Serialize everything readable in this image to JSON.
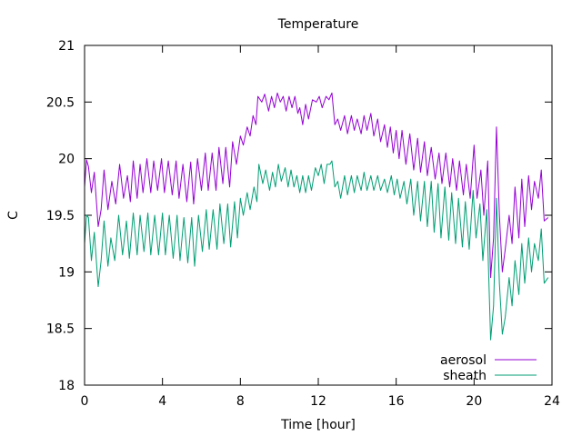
{
  "chart_data": {
    "type": "line",
    "title": "Temperature",
    "xlabel": "Time [hour]",
    "ylabel": "C",
    "xlim": [
      0,
      24
    ],
    "ylim": [
      18,
      21
    ],
    "x_ticks": [
      "0",
      "4",
      "8",
      "12",
      "16",
      "20",
      "24"
    ],
    "y_ticks": [
      "18",
      "18.5",
      "19",
      "19.5",
      "20",
      "20.5",
      "21"
    ],
    "grid": false,
    "legend_position": "bottom-right",
    "series": [
      {
        "name": "aerosol",
        "color": "#9400d3",
        "points": [
          [
            0.0,
            19.75
          ],
          [
            0.1,
            19.99
          ],
          [
            0.2,
            19.93
          ],
          [
            0.35,
            19.7
          ],
          [
            0.5,
            19.88
          ],
          [
            0.7,
            19.4
          ],
          [
            0.85,
            19.55
          ],
          [
            1.0,
            19.9
          ],
          [
            1.2,
            19.55
          ],
          [
            1.4,
            19.8
          ],
          [
            1.6,
            19.6
          ],
          [
            1.8,
            19.95
          ],
          [
            2.0,
            19.65
          ],
          [
            2.2,
            19.85
          ],
          [
            2.35,
            19.62
          ],
          [
            2.5,
            19.98
          ],
          [
            2.7,
            19.65
          ],
          [
            2.85,
            19.95
          ],
          [
            3.0,
            19.7
          ],
          [
            3.2,
            20.0
          ],
          [
            3.4,
            19.7
          ],
          [
            3.55,
            19.98
          ],
          [
            3.75,
            19.72
          ],
          [
            3.95,
            20.0
          ],
          [
            4.1,
            19.7
          ],
          [
            4.3,
            19.98
          ],
          [
            4.5,
            19.68
          ],
          [
            4.7,
            19.98
          ],
          [
            4.85,
            19.65
          ],
          [
            5.05,
            19.95
          ],
          [
            5.25,
            19.62
          ],
          [
            5.45,
            19.97
          ],
          [
            5.6,
            19.6
          ],
          [
            5.8,
            20.0
          ],
          [
            6.0,
            19.72
          ],
          [
            6.2,
            20.05
          ],
          [
            6.35,
            19.72
          ],
          [
            6.55,
            20.05
          ],
          [
            6.75,
            19.72
          ],
          [
            6.9,
            20.1
          ],
          [
            7.1,
            19.78
          ],
          [
            7.25,
            20.1
          ],
          [
            7.45,
            19.75
          ],
          [
            7.6,
            20.15
          ],
          [
            7.8,
            19.95
          ],
          [
            8.0,
            20.2
          ],
          [
            8.15,
            20.12
          ],
          [
            8.35,
            20.28
          ],
          [
            8.5,
            20.2
          ],
          [
            8.65,
            20.38
          ],
          [
            8.8,
            20.3
          ],
          [
            8.9,
            20.55
          ],
          [
            9.1,
            20.5
          ],
          [
            9.25,
            20.57
          ],
          [
            9.45,
            20.42
          ],
          [
            9.6,
            20.55
          ],
          [
            9.75,
            20.45
          ],
          [
            9.9,
            20.58
          ],
          [
            10.05,
            20.5
          ],
          [
            10.2,
            20.55
          ],
          [
            10.35,
            20.42
          ],
          [
            10.5,
            20.55
          ],
          [
            10.65,
            20.45
          ],
          [
            10.8,
            20.55
          ],
          [
            10.95,
            20.4
          ],
          [
            11.05,
            20.45
          ],
          [
            11.2,
            20.3
          ],
          [
            11.35,
            20.48
          ],
          [
            11.5,
            20.35
          ],
          [
            11.7,
            20.52
          ],
          [
            11.9,
            20.5
          ],
          [
            12.05,
            20.55
          ],
          [
            12.2,
            20.45
          ],
          [
            12.4,
            20.55
          ],
          [
            12.55,
            20.52
          ],
          [
            12.7,
            20.58
          ],
          [
            12.85,
            20.3
          ],
          [
            13.0,
            20.35
          ],
          [
            13.15,
            20.25
          ],
          [
            13.35,
            20.38
          ],
          [
            13.5,
            20.22
          ],
          [
            13.7,
            20.38
          ],
          [
            13.85,
            20.25
          ],
          [
            14.0,
            20.35
          ],
          [
            14.2,
            20.22
          ],
          [
            14.35,
            20.38
          ],
          [
            14.5,
            20.25
          ],
          [
            14.7,
            20.4
          ],
          [
            14.85,
            20.2
          ],
          [
            15.05,
            20.35
          ],
          [
            15.2,
            20.15
          ],
          [
            15.4,
            20.3
          ],
          [
            15.55,
            20.1
          ],
          [
            15.7,
            20.28
          ],
          [
            15.85,
            20.05
          ],
          [
            16.0,
            20.25
          ],
          [
            16.15,
            20.0
          ],
          [
            16.3,
            20.25
          ],
          [
            16.5,
            19.95
          ],
          [
            16.7,
            20.22
          ],
          [
            16.9,
            19.9
          ],
          [
            17.1,
            20.18
          ],
          [
            17.25,
            19.88
          ],
          [
            17.45,
            20.15
          ],
          [
            17.6,
            19.85
          ],
          [
            17.8,
            20.1
          ],
          [
            18.0,
            19.82
          ],
          [
            18.2,
            20.05
          ],
          [
            18.35,
            19.78
          ],
          [
            18.55,
            20.05
          ],
          [
            18.75,
            19.75
          ],
          [
            18.9,
            20.0
          ],
          [
            19.1,
            19.72
          ],
          [
            19.25,
            19.98
          ],
          [
            19.45,
            19.68
          ],
          [
            19.6,
            19.95
          ],
          [
            19.8,
            19.65
          ],
          [
            20.0,
            20.12
          ],
          [
            20.15,
            19.65
          ],
          [
            20.35,
            19.9
          ],
          [
            20.5,
            19.5
          ],
          [
            20.7,
            19.98
          ],
          [
            20.85,
            18.95
          ],
          [
            21.0,
            19.3
          ],
          [
            21.15,
            20.28
          ],
          [
            21.3,
            19.5
          ],
          [
            21.45,
            19.0
          ],
          [
            21.6,
            19.2
          ],
          [
            21.8,
            19.5
          ],
          [
            21.95,
            19.25
          ],
          [
            22.1,
            19.75
          ],
          [
            22.3,
            19.3
          ],
          [
            22.45,
            19.82
          ],
          [
            22.6,
            19.4
          ],
          [
            22.8,
            19.85
          ],
          [
            22.95,
            19.55
          ],
          [
            23.1,
            19.8
          ],
          [
            23.3,
            19.65
          ],
          [
            23.45,
            19.9
          ],
          [
            23.6,
            19.45
          ],
          [
            23.8,
            19.48
          ]
        ]
      },
      {
        "name": "sheath",
        "color": "#009e73",
        "points": [
          [
            0.0,
            19.25
          ],
          [
            0.1,
            19.5
          ],
          [
            0.2,
            19.48
          ],
          [
            0.35,
            19.1
          ],
          [
            0.5,
            19.35
          ],
          [
            0.7,
            18.87
          ],
          [
            0.85,
            19.1
          ],
          [
            1.0,
            19.45
          ],
          [
            1.2,
            19.05
          ],
          [
            1.35,
            19.3
          ],
          [
            1.55,
            19.1
          ],
          [
            1.75,
            19.5
          ],
          [
            1.95,
            19.15
          ],
          [
            2.15,
            19.45
          ],
          [
            2.3,
            19.12
          ],
          [
            2.5,
            19.52
          ],
          [
            2.7,
            19.15
          ],
          [
            2.85,
            19.5
          ],
          [
            3.05,
            19.18
          ],
          [
            3.25,
            19.52
          ],
          [
            3.4,
            19.15
          ],
          [
            3.6,
            19.5
          ],
          [
            3.8,
            19.15
          ],
          [
            4.0,
            19.52
          ],
          [
            4.15,
            19.15
          ],
          [
            4.35,
            19.5
          ],
          [
            4.55,
            19.12
          ],
          [
            4.75,
            19.5
          ],
          [
            4.9,
            19.1
          ],
          [
            5.1,
            19.48
          ],
          [
            5.3,
            19.08
          ],
          [
            5.5,
            19.48
          ],
          [
            5.65,
            19.05
          ],
          [
            5.85,
            19.5
          ],
          [
            6.05,
            19.18
          ],
          [
            6.25,
            19.55
          ],
          [
            6.4,
            19.2
          ],
          [
            6.6,
            19.55
          ],
          [
            6.8,
            19.2
          ],
          [
            6.95,
            19.6
          ],
          [
            7.15,
            19.25
          ],
          [
            7.35,
            19.6
          ],
          [
            7.5,
            19.22
          ],
          [
            7.7,
            19.62
          ],
          [
            7.85,
            19.3
          ],
          [
            8.0,
            19.65
          ],
          [
            8.15,
            19.5
          ],
          [
            8.35,
            19.7
          ],
          [
            8.5,
            19.55
          ],
          [
            8.7,
            19.75
          ],
          [
            8.85,
            19.62
          ],
          [
            8.95,
            19.95
          ],
          [
            9.15,
            19.78
          ],
          [
            9.3,
            19.9
          ],
          [
            9.5,
            19.72
          ],
          [
            9.65,
            19.88
          ],
          [
            9.8,
            19.75
          ],
          [
            9.95,
            19.95
          ],
          [
            10.1,
            19.8
          ],
          [
            10.3,
            19.92
          ],
          [
            10.45,
            19.75
          ],
          [
            10.6,
            19.9
          ],
          [
            10.75,
            19.75
          ],
          [
            10.9,
            19.85
          ],
          [
            11.05,
            19.7
          ],
          [
            11.2,
            19.85
          ],
          [
            11.35,
            19.7
          ],
          [
            11.5,
            19.85
          ],
          [
            11.65,
            19.72
          ],
          [
            11.85,
            19.92
          ],
          [
            12.0,
            19.85
          ],
          [
            12.15,
            19.95
          ],
          [
            12.3,
            19.78
          ],
          [
            12.45,
            19.95
          ],
          [
            12.6,
            19.95
          ],
          [
            12.7,
            19.98
          ],
          [
            12.85,
            19.75
          ],
          [
            13.0,
            19.8
          ],
          [
            13.15,
            19.65
          ],
          [
            13.35,
            19.85
          ],
          [
            13.5,
            19.68
          ],
          [
            13.7,
            19.85
          ],
          [
            13.85,
            19.7
          ],
          [
            14.0,
            19.85
          ],
          [
            14.2,
            19.72
          ],
          [
            14.35,
            19.88
          ],
          [
            14.5,
            19.72
          ],
          [
            14.7,
            19.85
          ],
          [
            14.85,
            19.72
          ],
          [
            15.05,
            19.85
          ],
          [
            15.2,
            19.72
          ],
          [
            15.4,
            19.82
          ],
          [
            15.55,
            19.7
          ],
          [
            15.75,
            19.85
          ],
          [
            15.9,
            19.68
          ],
          [
            16.05,
            19.82
          ],
          [
            16.2,
            19.65
          ],
          [
            16.4,
            19.8
          ],
          [
            16.55,
            19.6
          ],
          [
            16.75,
            19.82
          ],
          [
            16.9,
            19.5
          ],
          [
            17.1,
            19.8
          ],
          [
            17.25,
            19.45
          ],
          [
            17.45,
            19.8
          ],
          [
            17.6,
            19.4
          ],
          [
            17.8,
            19.8
          ],
          [
            17.95,
            19.35
          ],
          [
            18.15,
            19.78
          ],
          [
            18.3,
            19.3
          ],
          [
            18.5,
            19.75
          ],
          [
            18.7,
            19.28
          ],
          [
            18.85,
            19.7
          ],
          [
            19.05,
            19.25
          ],
          [
            19.2,
            19.65
          ],
          [
            19.4,
            19.22
          ],
          [
            19.55,
            19.62
          ],
          [
            19.75,
            19.2
          ],
          [
            19.95,
            19.72
          ],
          [
            20.1,
            19.3
          ],
          [
            20.3,
            19.6
          ],
          [
            20.45,
            19.1
          ],
          [
            20.65,
            19.55
          ],
          [
            20.85,
            18.4
          ],
          [
            21.0,
            18.7
          ],
          [
            21.15,
            19.65
          ],
          [
            21.3,
            18.9
          ],
          [
            21.45,
            18.45
          ],
          [
            21.6,
            18.6
          ],
          [
            21.8,
            18.95
          ],
          [
            21.95,
            18.7
          ],
          [
            22.1,
            19.1
          ],
          [
            22.3,
            18.8
          ],
          [
            22.45,
            19.25
          ],
          [
            22.6,
            18.9
          ],
          [
            22.8,
            19.3
          ],
          [
            22.95,
            19.0
          ],
          [
            23.1,
            19.25
          ],
          [
            23.3,
            19.1
          ],
          [
            23.45,
            19.38
          ],
          [
            23.6,
            18.9
          ],
          [
            23.8,
            18.95
          ]
        ]
      }
    ]
  }
}
